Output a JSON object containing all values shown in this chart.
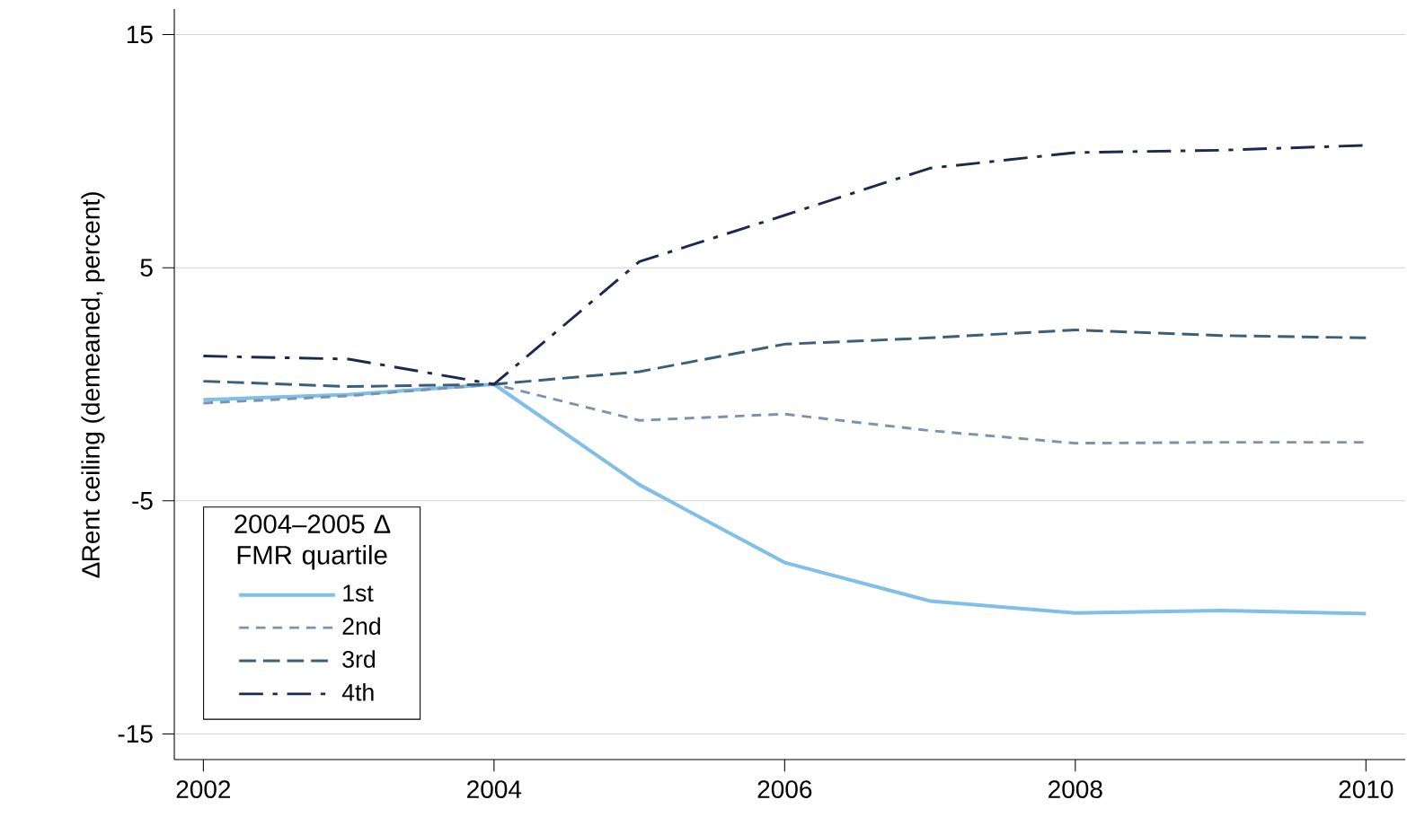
{
  "chart_data": {
    "type": "line",
    "ylabel": "∆Rent ceiling (demeaned, percent)",
    "legend_title": "2004–2005 ∆ FMR quartile",
    "x": [
      2002,
      2003,
      2004,
      2005,
      2006,
      2007,
      2008,
      2009,
      2010
    ],
    "series": [
      {
        "name": "1st",
        "color": "#7fbfe8",
        "line_style": "solid",
        "values": [
          -0.67,
          -0.44,
          0,
          -4.31,
          -7.65,
          -9.3,
          -9.81,
          -9.71,
          -9.84
        ]
      },
      {
        "name": "2nd",
        "color": "#7a93b0",
        "line_style": "dashed",
        "values": [
          -0.81,
          -0.5,
          0,
          -1.55,
          -1.28,
          -1.99,
          -2.53,
          -2.49,
          -2.49
        ]
      },
      {
        "name": "3rd",
        "color": "#3b5f7a",
        "line_style": "dashed",
        "values": [
          0.13,
          -0.1,
          0,
          0.54,
          1.72,
          1.99,
          2.33,
          2.09,
          1.99
        ]
      },
      {
        "name": "4th",
        "color": "#1a2a4e",
        "line_style": "dashed",
        "values": [
          1.21,
          1.08,
          0,
          5.26,
          7.25,
          9.27,
          9.94,
          10.04,
          10.25
        ]
      }
    ],
    "xlim": [
      2001.8,
      2010.27
    ],
    "ylim": [
      -16.1,
      16.1
    ],
    "xticks": [
      2002,
      2004,
      2006,
      2008,
      2010
    ],
    "yticks": [
      -15,
      -5,
      5,
      15
    ],
    "grid": "y",
    "legend": "bottom left"
  }
}
